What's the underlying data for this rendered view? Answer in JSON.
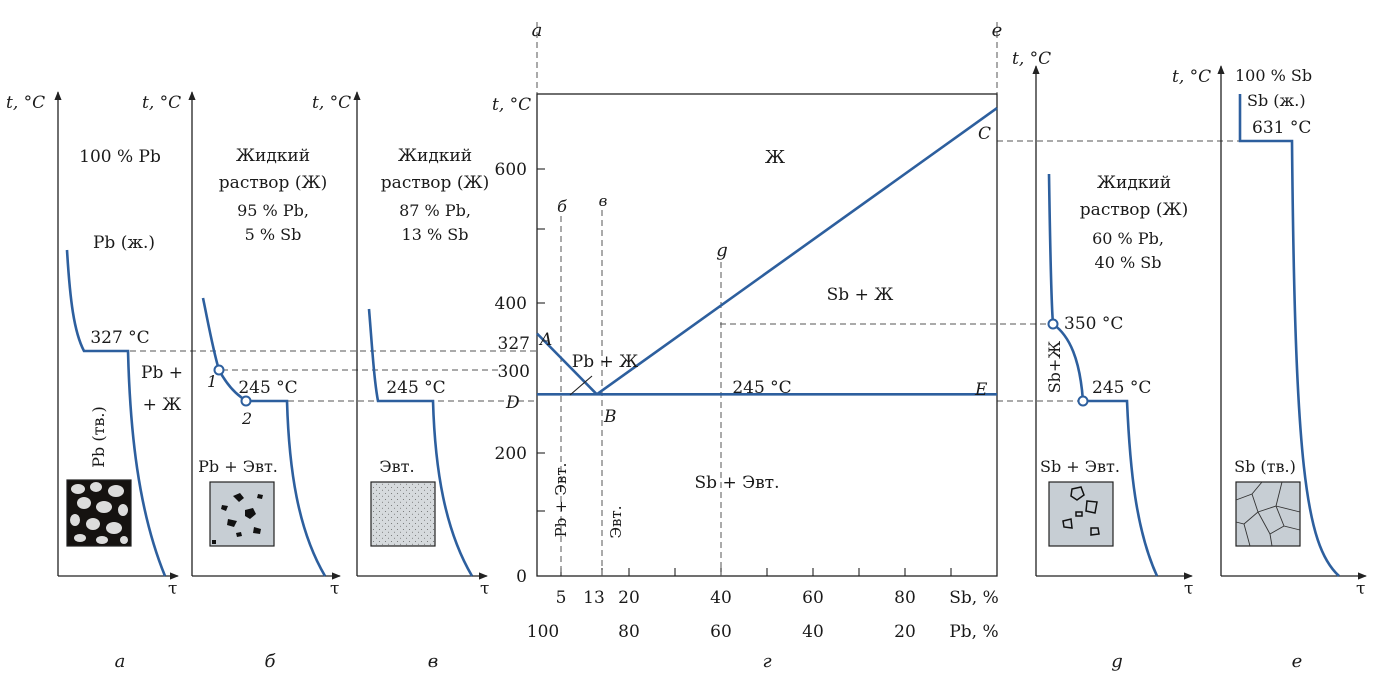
{
  "colors": {
    "curve": "#2d5f9e",
    "axis": "#222222",
    "dash": "#555555",
    "panel_fill": "#c7ced4"
  },
  "panels": [
    {
      "id": "a",
      "bottom_label": "а",
      "t_label": "t, °C",
      "tau_label": "τ",
      "top_text": [
        "100 % Pb"
      ],
      "phase_label": "Pb (ж.)",
      "temp_label": "327 °C",
      "region_label": [
        "Pb +",
        "+ Ж"
      ],
      "solid_label": "Pb (тв.)"
    },
    {
      "id": "b",
      "bottom_label": "б",
      "t_label": "t, °C",
      "tau_label": "τ",
      "top_text": [
        "Жидкий",
        "раствор (Ж)",
        "95 % Pb,",
        "5 % Sb"
      ],
      "point1": "1",
      "point2": "2",
      "temp_label": "245 °C",
      "micro_label": "Pb + Эвт."
    },
    {
      "id": "v",
      "bottom_label": "в",
      "t_label": "t, °C",
      "tau_label": "τ",
      "top_text": [
        "Жидкий",
        "раствор (Ж)",
        "87 % Pb,",
        "13 % Sb"
      ],
      "temp_label": "245 °C",
      "micro_label": "Эвт."
    },
    {
      "id": "d",
      "bottom_label": "g",
      "t_label": "t, °C",
      "tau_label": "τ",
      "top_text": [
        "Жидкий",
        "раствор (Ж)",
        "60 % Pb,",
        "40 % Sb"
      ],
      "temp1_label": "350 °C",
      "temp2_label": "245 °C",
      "region_label": "Sb+Ж",
      "micro_label": "Sb + Эвт."
    },
    {
      "id": "e",
      "bottom_label": "е",
      "t_label": "t, °C",
      "tau_label": "τ",
      "top_text": [
        "100 % Sb",
        "Sb (ж.)",
        "631 °C"
      ],
      "solid_label": "Sb (тв.)"
    }
  ],
  "diagram": {
    "bottom_label": "г",
    "t_label": "t, °C",
    "y_ticks": [
      "600",
      "400",
      "300",
      "200",
      "0"
    ],
    "y327": "327",
    "x_sb_ticks": [
      "5",
      "13",
      "20",
      "40",
      "60",
      "80"
    ],
    "x_sb_label": "Sb,  %",
    "x_pb_ticks": [
      "100",
      "80",
      "60",
      "40",
      "20"
    ],
    "x_pb_label": "Pb,  %",
    "line_labels": {
      "a": "а",
      "e": "е",
      "b": "б",
      "v": "в",
      "g": "g"
    },
    "points": {
      "A": "A",
      "B": "B",
      "C": "C",
      "D": "D",
      "E": "E"
    },
    "regions": {
      "liquid": "Ж",
      "sb_liquid": "Sb + Ж",
      "pb_liquid": "Pb + Ж",
      "sb_eut": "Sb + Эвт.",
      "pb_eut": "Pb + Эвт.",
      "eut": "Эвт."
    },
    "eutectic_temp": "245 °C"
  },
  "chart_data": {
    "type": "line",
    "title": "",
    "xlabel": "Sb, %",
    "ylabel": "t, °C",
    "xlim": [
      0,
      100
    ],
    "ylim": [
      0,
      650
    ],
    "series": [
      {
        "values": [
          {
            "x": 0,
            "y": 327
          },
          {
            "x": 13,
            "y": 245
          }
        ]
      },
      {
        "values": [
          {
            "x": 13,
            "y": 245
          },
          {
            "x": 100,
            "y": 631
          }
        ]
      },
      {
        "values": [
          {
            "x": 0,
            "y": 245
          },
          {
            "x": 100,
            "y": 245
          }
        ]
      }
    ],
    "annotations": [
      "A",
      "B",
      "C",
      "D",
      "E",
      "327",
      "245 °C",
      "Ж",
      "Sb + Ж",
      "Pb + Ж",
      "Sb + Эвт.",
      "Pb + Эвт.",
      "Эвт."
    ]
  }
}
